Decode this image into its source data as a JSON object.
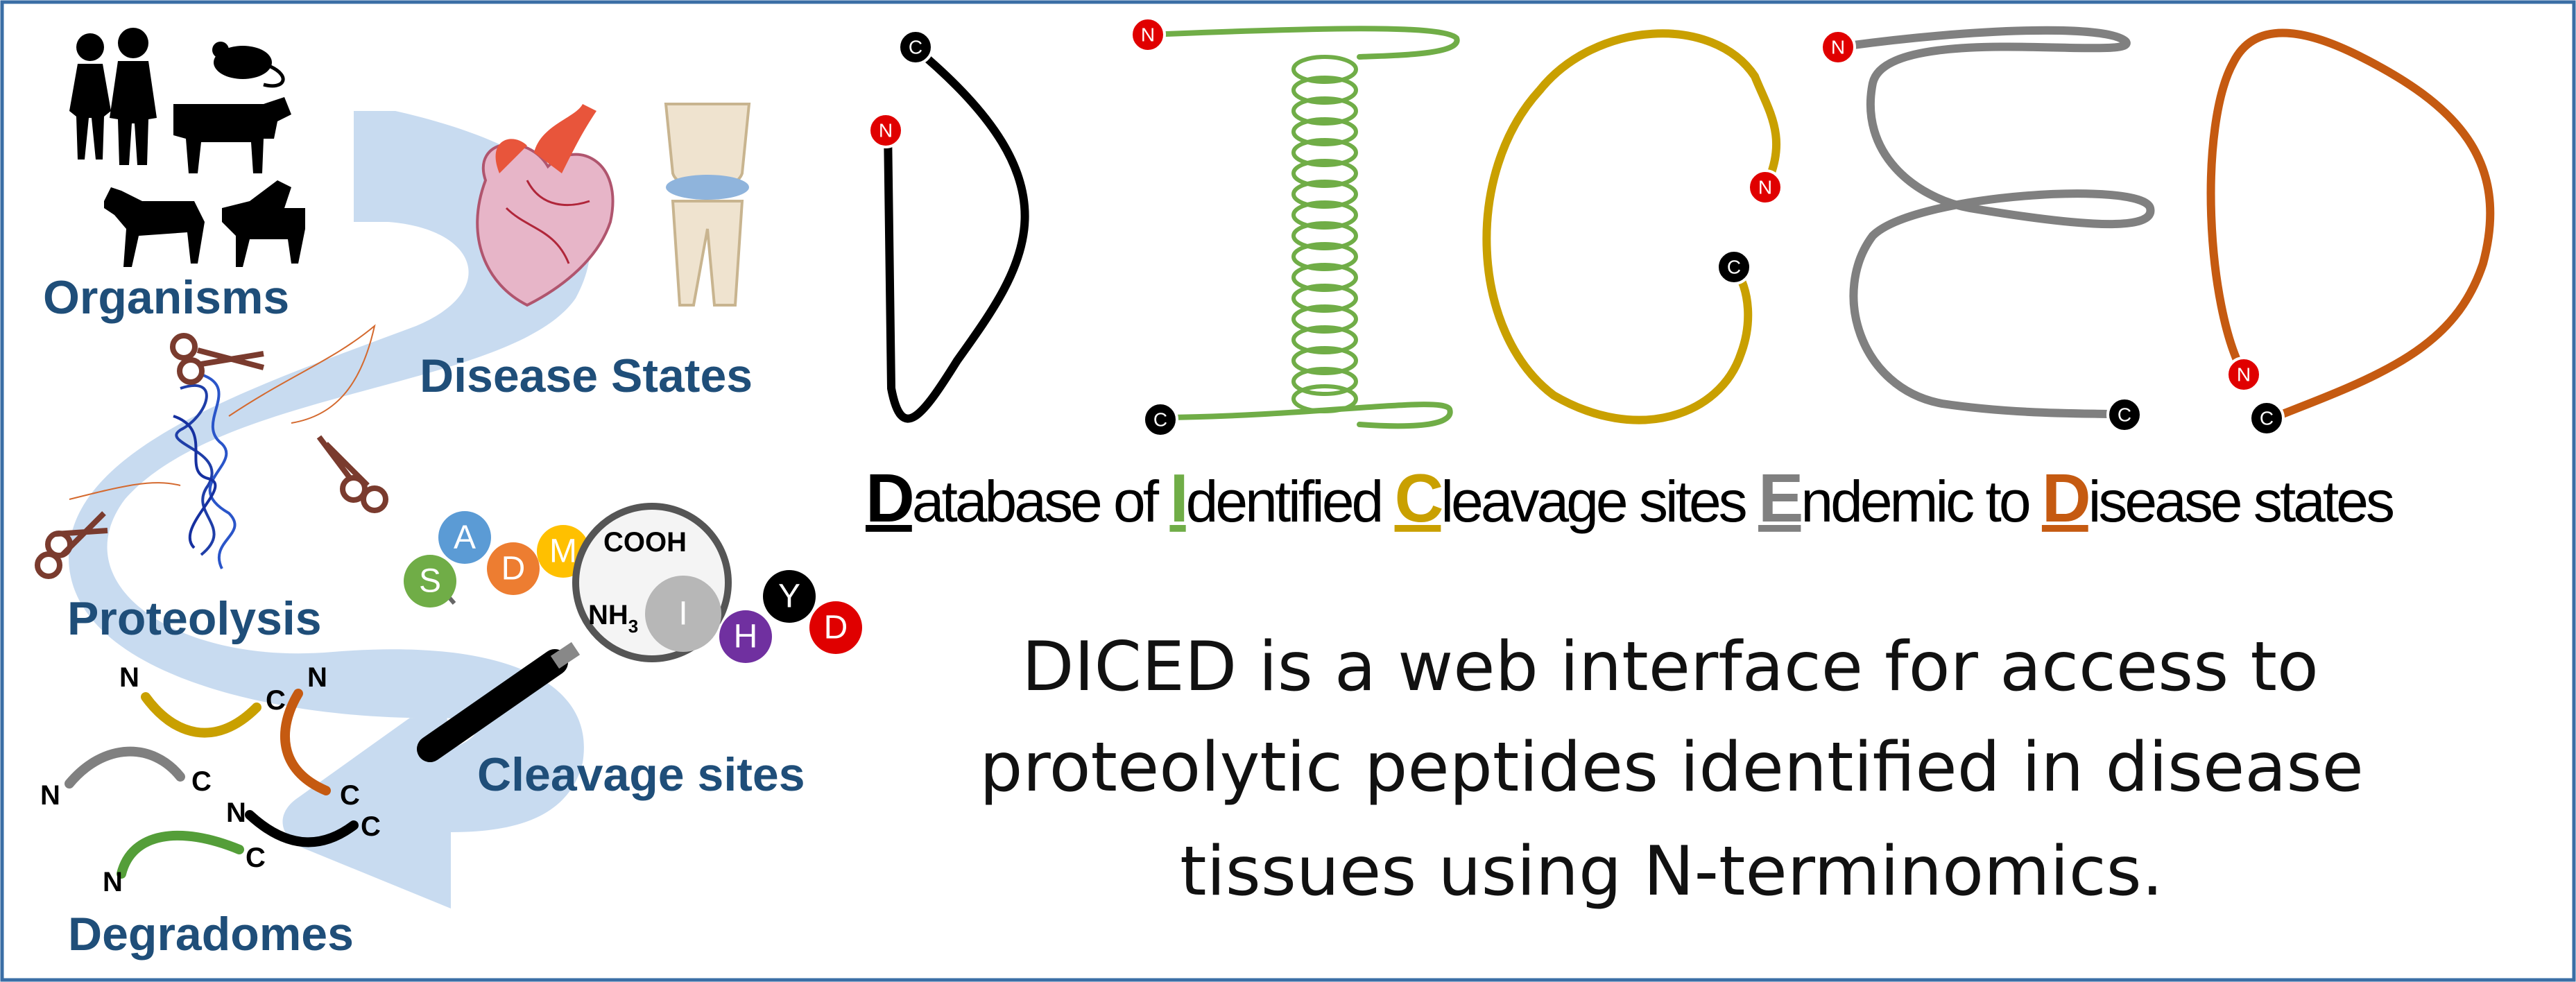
{
  "left_panel": {
    "labels": {
      "organisms": "Organisms",
      "disease_states": "Disease States",
      "proteolysis": "Proteolysis",
      "cleavage_sites": "Cleavage sites",
      "degradomes": "Degradomes"
    },
    "amino_acids": [
      "S",
      "A",
      "D",
      "M",
      "I",
      "H",
      "Y",
      "D"
    ],
    "chem": {
      "cooh": "COOH",
      "nh": "NH",
      "nh_sub": "3"
    },
    "terminus": {
      "n": "N",
      "c": "C"
    },
    "colors": {
      "arrow": "#c5d9ef",
      "label": "#1f4e79"
    }
  },
  "logo": {
    "letter_colors": [
      "#000000",
      "#70ad47",
      "#c9a000",
      "#808080",
      "#c55a11"
    ],
    "n_tag": "N",
    "c_tag": "C"
  },
  "acronym": {
    "segments": [
      {
        "cap": "D",
        "rest": "atabase of ",
        "color": "#000000"
      },
      {
        "cap": "I",
        "rest": "dentified ",
        "color": "#70ad47"
      },
      {
        "cap": "C",
        "rest": "leavage sites ",
        "color": "#c9a000"
      },
      {
        "cap": "E",
        "rest": "ndemic to ",
        "color": "#808080"
      },
      {
        "cap": "D",
        "rest": "isease states",
        "color": "#c55a11"
      }
    ]
  },
  "description": {
    "line1": "DICED is a web interface for access to",
    "line2": "proteolytic peptides identified in disease",
    "line3": "tissues using N-terminomics."
  }
}
